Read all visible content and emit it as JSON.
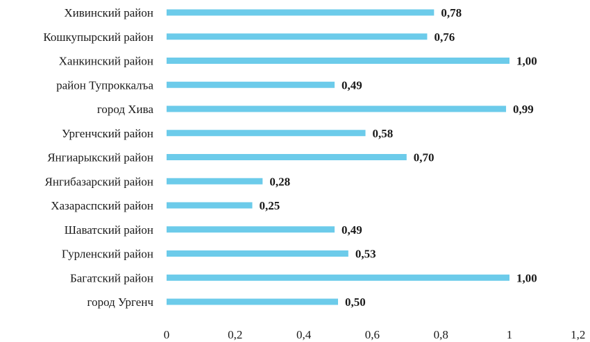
{
  "chart_data": {
    "type": "bar",
    "orientation": "horizontal",
    "categories": [
      "Хивинский район",
      "Кошкупырский район",
      "Ханкинский район",
      "район Тупроккалъа",
      "город Хива",
      "Ургенчский район",
      "Янгиарыкский район",
      "Янгибазарский район",
      "Хазараспский район",
      "Шаватский район",
      "Гурленский район",
      "Багатский район",
      "город Ургенч"
    ],
    "values": [
      0.78,
      0.76,
      1.0,
      0.49,
      0.99,
      0.58,
      0.7,
      0.28,
      0.25,
      0.49,
      0.53,
      1.0,
      0.5
    ],
    "value_labels": [
      "0,78",
      "0,76",
      "1,00",
      "0,49",
      "0,99",
      "0,58",
      "0,70",
      "0,28",
      "0,25",
      "0,49",
      "0,53",
      "1,00",
      "0,50"
    ],
    "xlim": [
      0,
      1.2
    ],
    "x_ticks": [
      0,
      0.2,
      0.4,
      0.6,
      0.8,
      1,
      1.2
    ],
    "x_tick_labels": [
      "0",
      "0,2",
      "0,4",
      "0,6",
      "0,8",
      "1",
      "1,2"
    ],
    "grid": false,
    "legend": "none",
    "bar_color": "#6ccbea"
  }
}
